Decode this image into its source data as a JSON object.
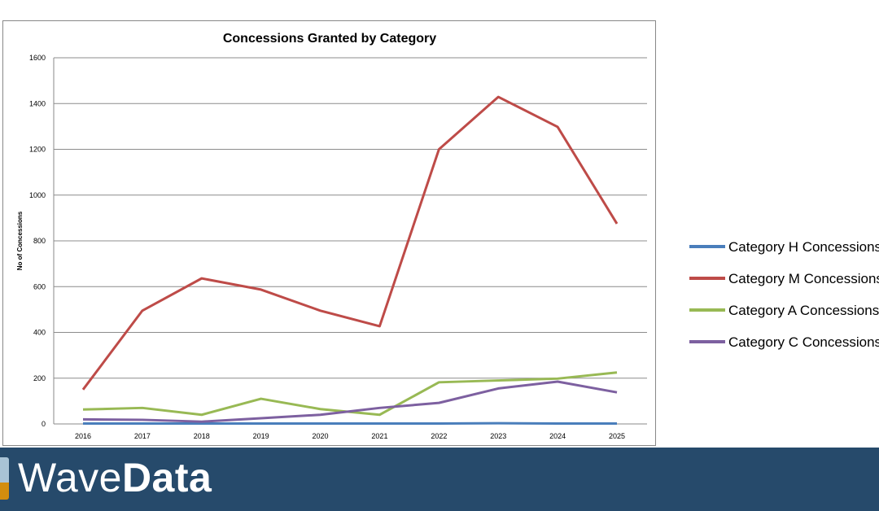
{
  "chart_data": {
    "type": "line",
    "title": "Concessions Granted by Category",
    "ylabel": "No of Concessions",
    "xlabel": "",
    "ylim": [
      0,
      1600
    ],
    "yticks": [
      "0",
      "200",
      "400",
      "600",
      "800",
      "1000",
      "1200",
      "1400",
      "1600"
    ],
    "categories": [
      "2016",
      "2017",
      "2018",
      "2019",
      "2020",
      "2021",
      "2022",
      "2023",
      "2024",
      "2025"
    ],
    "grid": true,
    "legend": "right",
    "series": [
      {
        "name": "Category H Concessions",
        "color": "#4a7ebb",
        "values": [
          2,
          2,
          2,
          2,
          2,
          2,
          2,
          3,
          2,
          2
        ]
      },
      {
        "name": "Category M Concessions",
        "color": "#be4b48",
        "values": [
          150,
          495,
          636,
          587,
          495,
          427,
          1200,
          1429,
          1298,
          875
        ]
      },
      {
        "name": "Category A Concessions",
        "color": "#98b954",
        "values": [
          63,
          70,
          40,
          110,
          65,
          40,
          182,
          190,
          198,
          225
        ]
      },
      {
        "name": "Category C Concessions",
        "color": "#7d60a0",
        "values": [
          20,
          18,
          10,
          25,
          40,
          70,
          92,
          155,
          185,
          138
        ]
      }
    ]
  },
  "banner": {
    "brand_light": "Wave",
    "brand_bold": "Data",
    "color": "#264a6b"
  }
}
